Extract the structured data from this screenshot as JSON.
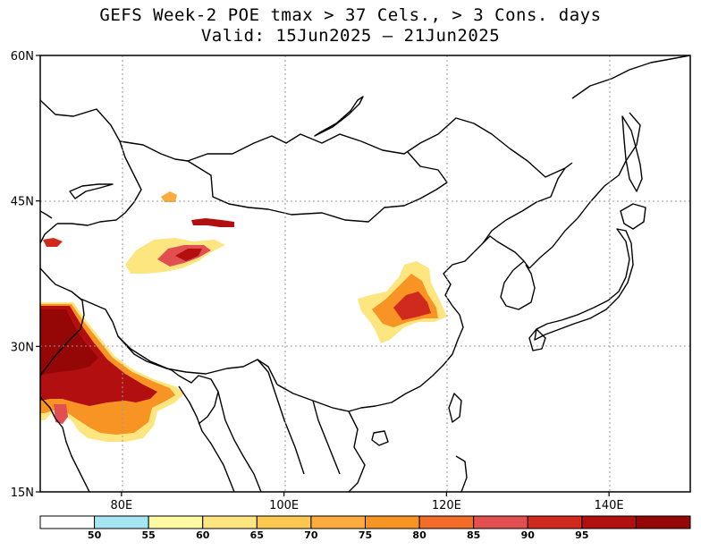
{
  "title": {
    "line1": "GEFS Week-2 POE tmax > 37 Cels., > 3 Cons. days",
    "line2": "Valid: 15Jun2025 – 21Jun2025"
  },
  "map": {
    "lon_range": [
      70,
      150
    ],
    "lat_range": [
      15,
      60
    ],
    "lat_ticks": [
      {
        "value": 60,
        "label": "60N"
      },
      {
        "value": 45,
        "label": "45N"
      },
      {
        "value": 30,
        "label": "30N"
      },
      {
        "value": 15,
        "label": "15N"
      }
    ],
    "lon_ticks": [
      {
        "value": 80,
        "label": "80E"
      },
      {
        "value": 100,
        "label": "100E"
      },
      {
        "value": 120,
        "label": "120E"
      },
      {
        "value": 140,
        "label": "140E"
      }
    ],
    "gridlines": "dotted"
  },
  "colorbar": {
    "bins": [
      {
        "color": "#ffffff"
      },
      {
        "color": "#a5e6f5",
        "label": "50"
      },
      {
        "color": "#fdfaa3",
        "label": "55"
      },
      {
        "color": "#fde580",
        "label": "60"
      },
      {
        "color": "#fcc74f",
        "label": "65"
      },
      {
        "color": "#fbac3c",
        "label": "70"
      },
      {
        "color": "#f89424",
        "label": "75"
      },
      {
        "color": "#f26b28",
        "label": "80"
      },
      {
        "color": "#e14f51",
        "label": "85"
      },
      {
        "color": "#d02a1f",
        "label": "90"
      },
      {
        "color": "#b10f10",
        "label": "95"
      },
      {
        "color": "#950707"
      }
    ]
  }
}
